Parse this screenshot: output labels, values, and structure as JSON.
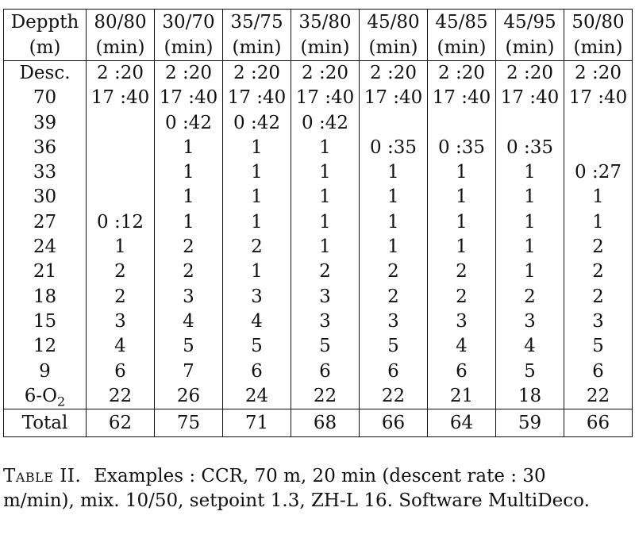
{
  "table": {
    "header_row1": [
      "Deppth",
      "80/80",
      "30/70",
      "35/75",
      "35/80",
      "45/80",
      "45/85",
      "45/95",
      "50/80"
    ],
    "header_row2": [
      "(m)",
      "(min)",
      "(min)",
      "(min)",
      "(min)",
      "(min)",
      "(min)",
      "(min)",
      "(min)"
    ],
    "rows": [
      [
        "Desc.",
        "2 :20",
        "2 :20",
        "2 :20",
        "2 :20",
        "2 :20",
        "2 :20",
        "2 :20",
        "2 :20"
      ],
      [
        "70",
        "17 :40",
        "17 :40",
        "17 :40",
        "17 :40",
        "17 :40",
        "17 :40",
        "17 :40",
        "17 :40"
      ],
      [
        "39",
        "",
        "0 :42",
        "0 :42",
        "0 :42",
        "",
        "",
        "",
        ""
      ],
      [
        "36",
        "",
        "1",
        "1",
        "1",
        "0 :35",
        "0 :35",
        "0 :35",
        ""
      ],
      [
        "33",
        "",
        "1",
        "1",
        "1",
        "1",
        "1",
        "1",
        "0 :27"
      ],
      [
        "30",
        "",
        "1",
        "1",
        "1",
        "1",
        "1",
        "1",
        "1"
      ],
      [
        "27",
        "0 :12",
        "1",
        "1",
        "1",
        "1",
        "1",
        "1",
        "1"
      ],
      [
        "24",
        "1",
        "2",
        "2",
        "1",
        "1",
        "1",
        "1",
        "2"
      ],
      [
        "21",
        "2",
        "2",
        "1",
        "2",
        "2",
        "2",
        "1",
        "2"
      ],
      [
        "18",
        "2",
        "3",
        "3",
        "3",
        "2",
        "2",
        "2",
        "2"
      ],
      [
        "15",
        "3",
        "4",
        "4",
        "3",
        "3",
        "3",
        "3",
        "3"
      ],
      [
        "12",
        "4",
        "5",
        "5",
        "5",
        "5",
        "4",
        "4",
        "5"
      ],
      [
        "9",
        "6",
        "7",
        "6",
        "6",
        "6",
        "6",
        "5",
        "6"
      ],
      [
        "6-O2",
        "22",
        "26",
        "24",
        "22",
        "22",
        "21",
        "18",
        "22"
      ]
    ],
    "total_row": [
      "Total",
      "62",
      "75",
      "71",
      "68",
      "66",
      "64",
      "59",
      "66"
    ]
  },
  "caption": {
    "label": "Table II.",
    "text": "Examples : CCR, 70 m, 20 min (descent rate : 30 m/min), mix. 10/50, setpoint 1.3, ZH-L 16. Software MultiDeco."
  }
}
